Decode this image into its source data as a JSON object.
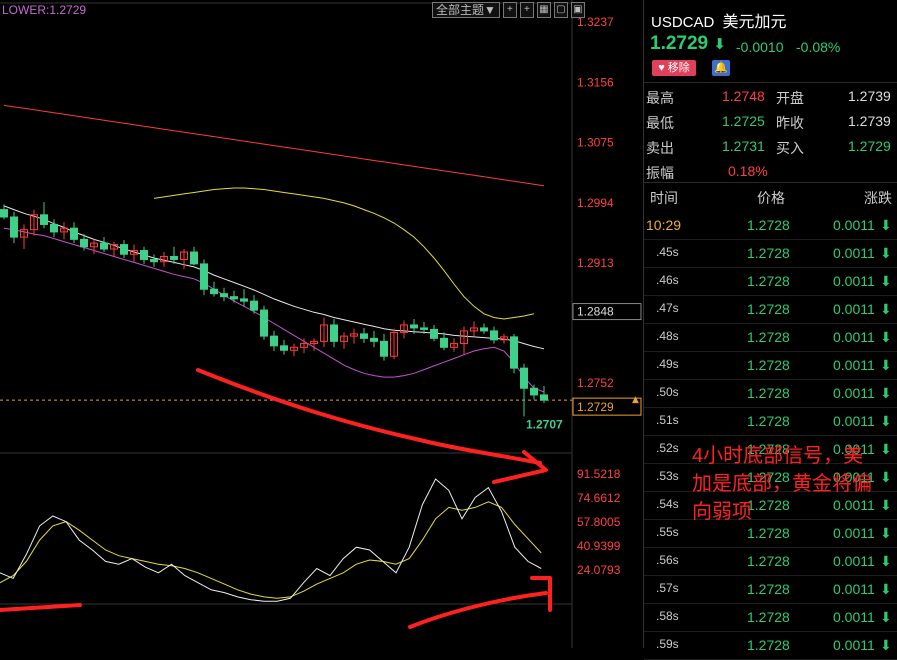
{
  "lower_label": "LOWER:1.2729",
  "toolbar": {
    "theme": "全部主题▼",
    "buttons": [
      "+",
      "+",
      "▦",
      "▢",
      "▣"
    ]
  },
  "header": {
    "symbol": "USDCAD",
    "name": "美元加元",
    "last": "1.2729",
    "arrow": "⬇",
    "change": "-0.0010",
    "change_pct": "-0.08%",
    "remove_label": "移除",
    "bell_icon": "bell-icon"
  },
  "quote": {
    "rows": [
      {
        "l1": "最高",
        "v1": "1.2748",
        "l2": "开盘",
        "v2": "1.2739"
      },
      {
        "l1": "最低",
        "v1": "1.2725",
        "l2": "昨收",
        "v2": "1.2739"
      },
      {
        "l1": "卖出",
        "v1": "1.2731",
        "l2": "买入",
        "v2": "1.2729"
      },
      {
        "l1": "振幅",
        "v1": "0.18%",
        "l2": "",
        "v2": ""
      }
    ]
  },
  "ticks": {
    "headers": {
      "time": "时间",
      "price": "价格",
      "change": "涨跌"
    },
    "rows": [
      {
        "time": "10:29",
        "price": "1.2728",
        "change": "0.0011"
      },
      {
        "time": ".45s",
        "price": "1.2728",
        "change": "0.0011"
      },
      {
        "time": ".46s",
        "price": "1.2728",
        "change": "0.0011"
      },
      {
        "time": ".47s",
        "price": "1.2728",
        "change": "0.0011"
      },
      {
        "time": ".48s",
        "price": "1.2728",
        "change": "0.0011"
      },
      {
        "time": ".49s",
        "price": "1.2728",
        "change": "0.0011"
      },
      {
        "time": ".50s",
        "price": "1.2728",
        "change": "0.0011"
      },
      {
        "time": ".51s",
        "price": "1.2728",
        "change": "0.0011"
      },
      {
        "time": ".52s",
        "price": "1.2728",
        "change": "0.0011"
      },
      {
        "time": ".53s",
        "price": "1.2728",
        "change": "0.0011"
      },
      {
        "time": ".54s",
        "price": "1.2728",
        "change": "0.0011"
      },
      {
        "time": ".55s",
        "price": "1.2728",
        "change": "0.0011"
      },
      {
        "time": ".56s",
        "price": "1.2728",
        "change": "0.0011"
      },
      {
        "time": ".57s",
        "price": "1.2728",
        "change": "0.0011"
      },
      {
        "time": ".58s",
        "price": "1.2728",
        "change": "0.0011"
      },
      {
        "time": ".59s",
        "price": "1.2728",
        "change": "0.0011"
      }
    ]
  },
  "colors": {
    "up": "#3fd08a",
    "down": "#ff3b3b",
    "ma_white": "#e8e8e8",
    "band_yellow": "#e6dc3c",
    "band_red": "#ff3b3b",
    "lower_band": "#c850d0",
    "annotation": "#ff2020"
  },
  "chart_data": {
    "type": "candlestick",
    "price_ticks": [
      1.3237,
      1.3156,
      1.3075,
      1.2994,
      1.2913,
      1.2848,
      1.2752,
      1.2729
    ],
    "current_price": 1.2729,
    "low_label": "1.2707",
    "ylim": [
      1.2705,
      1.3237
    ],
    "candles": [
      {
        "o": 1.2985,
        "h": 1.2992,
        "l": 1.2972,
        "c": 1.2975
      },
      {
        "o": 1.2975,
        "h": 1.2982,
        "l": 1.294,
        "c": 1.2948
      },
      {
        "o": 1.2948,
        "h": 1.2965,
        "l": 1.2932,
        "c": 1.2958
      },
      {
        "o": 1.2958,
        "h": 1.2985,
        "l": 1.295,
        "c": 1.2978
      },
      {
        "o": 1.2978,
        "h": 1.2995,
        "l": 1.296,
        "c": 1.2965
      },
      {
        "o": 1.2965,
        "h": 1.2972,
        "l": 1.2948,
        "c": 1.2955
      },
      {
        "o": 1.2955,
        "h": 1.2968,
        "l": 1.2945,
        "c": 1.296
      },
      {
        "o": 1.296,
        "h": 1.2968,
        "l": 1.294,
        "c": 1.2945
      },
      {
        "o": 1.2945,
        "h": 1.2952,
        "l": 1.293,
        "c": 1.2935
      },
      {
        "o": 1.2935,
        "h": 1.2945,
        "l": 1.2925,
        "c": 1.294
      },
      {
        "o": 1.294,
        "h": 1.2948,
        "l": 1.2928,
        "c": 1.2932
      },
      {
        "o": 1.2932,
        "h": 1.2942,
        "l": 1.2922,
        "c": 1.2938
      },
      {
        "o": 1.2938,
        "h": 1.2944,
        "l": 1.292,
        "c": 1.2925
      },
      {
        "o": 1.2925,
        "h": 1.2938,
        "l": 1.2915,
        "c": 1.293
      },
      {
        "o": 1.293,
        "h": 1.2935,
        "l": 1.2912,
        "c": 1.2918
      },
      {
        "o": 1.2918,
        "h": 1.2925,
        "l": 1.2908,
        "c": 1.2915
      },
      {
        "o": 1.2915,
        "h": 1.2928,
        "l": 1.2908,
        "c": 1.2922
      },
      {
        "o": 1.2922,
        "h": 1.2935,
        "l": 1.2912,
        "c": 1.2918
      },
      {
        "o": 1.2918,
        "h": 1.2932,
        "l": 1.2905,
        "c": 1.2928
      },
      {
        "o": 1.2928,
        "h": 1.2935,
        "l": 1.291,
        "c": 1.2912
      },
      {
        "o": 1.2912,
        "h": 1.2918,
        "l": 1.287,
        "c": 1.2878
      },
      {
        "o": 1.2878,
        "h": 1.2888,
        "l": 1.2868,
        "c": 1.2872
      },
      {
        "o": 1.2872,
        "h": 1.288,
        "l": 1.2862,
        "c": 1.2868
      },
      {
        "o": 1.2868,
        "h": 1.2876,
        "l": 1.286,
        "c": 1.2865
      },
      {
        "o": 1.2865,
        "h": 1.2878,
        "l": 1.2855,
        "c": 1.2862
      },
      {
        "o": 1.2862,
        "h": 1.287,
        "l": 1.2845,
        "c": 1.285
      },
      {
        "o": 1.285,
        "h": 1.2856,
        "l": 1.281,
        "c": 1.2815
      },
      {
        "o": 1.2815,
        "h": 1.2822,
        "l": 1.2795,
        "c": 1.2802
      },
      {
        "o": 1.2802,
        "h": 1.281,
        "l": 1.279,
        "c": 1.2796
      },
      {
        "o": 1.2796,
        "h": 1.2805,
        "l": 1.2788,
        "c": 1.28
      },
      {
        "o": 1.28,
        "h": 1.2812,
        "l": 1.2792,
        "c": 1.2805
      },
      {
        "o": 1.2805,
        "h": 1.2812,
        "l": 1.2795,
        "c": 1.2808
      },
      {
        "o": 1.2808,
        "h": 1.284,
        "l": 1.28,
        "c": 1.283
      },
      {
        "o": 1.283,
        "h": 1.2838,
        "l": 1.28,
        "c": 1.2808
      },
      {
        "o": 1.2808,
        "h": 1.282,
        "l": 1.2798,
        "c": 1.2815
      },
      {
        "o": 1.2815,
        "h": 1.2825,
        "l": 1.2805,
        "c": 1.2818
      },
      {
        "o": 1.2818,
        "h": 1.2826,
        "l": 1.2806,
        "c": 1.2812
      },
      {
        "o": 1.2812,
        "h": 1.2822,
        "l": 1.28,
        "c": 1.2808
      },
      {
        "o": 1.2808,
        "h": 1.2818,
        "l": 1.2782,
        "c": 1.2788
      },
      {
        "o": 1.2788,
        "h": 1.2825,
        "l": 1.2784,
        "c": 1.282
      },
      {
        "o": 1.282,
        "h": 1.2836,
        "l": 1.2812,
        "c": 1.283
      },
      {
        "o": 1.283,
        "h": 1.2838,
        "l": 1.2818,
        "c": 1.2826
      },
      {
        "o": 1.2826,
        "h": 1.2834,
        "l": 1.2818,
        "c": 1.2824
      },
      {
        "o": 1.2824,
        "h": 1.283,
        "l": 1.2808,
        "c": 1.2812
      },
      {
        "o": 1.2812,
        "h": 1.282,
        "l": 1.2796,
        "c": 1.28
      },
      {
        "o": 1.28,
        "h": 1.2812,
        "l": 1.2794,
        "c": 1.2805
      },
      {
        "o": 1.2805,
        "h": 1.2828,
        "l": 1.279,
        "c": 1.2822
      },
      {
        "o": 1.2822,
        "h": 1.2835,
        "l": 1.2815,
        "c": 1.2826
      },
      {
        "o": 1.2826,
        "h": 1.2832,
        "l": 1.2818,
        "c": 1.2822
      },
      {
        "o": 1.2822,
        "h": 1.2828,
        "l": 1.2805,
        "c": 1.281
      },
      {
        "o": 1.281,
        "h": 1.2818,
        "l": 1.2805,
        "c": 1.2814
      },
      {
        "o": 1.2814,
        "h": 1.2818,
        "l": 1.2765,
        "c": 1.2772
      },
      {
        "o": 1.2772,
        "h": 1.2778,
        "l": 1.2707,
        "c": 1.2745
      },
      {
        "o": 1.2745,
        "h": 1.275,
        "l": 1.273,
        "c": 1.2736
      },
      {
        "o": 1.2736,
        "h": 1.2748,
        "l": 1.2725,
        "c": 1.2729
      }
    ],
    "ma_white": [
      1.299,
      1.2985,
      1.298,
      1.2976,
      1.2972,
      1.2966,
      1.2961,
      1.2955,
      1.295,
      1.2945,
      1.2941,
      1.2937,
      1.2932,
      1.2928,
      1.2924,
      1.292,
      1.2917,
      1.2914,
      1.2911,
      1.2908,
      1.2903,
      1.2897,
      1.2892,
      1.2887,
      1.2882,
      1.2877,
      1.2871,
      1.2865,
      1.286,
      1.2855,
      1.2851,
      1.2847,
      1.2844,
      1.284,
      1.2837,
      1.2834,
      1.2831,
      1.2828,
      1.2825,
      1.2823,
      1.2822,
      1.2821,
      1.282,
      1.2819,
      1.2818,
      1.2816,
      1.2815,
      1.2814,
      1.2813,
      1.2812,
      1.2811,
      1.2809,
      1.2805,
      1.2801,
      1.2798
    ],
    "band_upper": [
      1.3,
      1.3002,
      1.3004,
      1.3006,
      1.3008,
      1.301,
      1.3012,
      1.3013,
      1.3014,
      1.3014,
      1.3013,
      1.3012,
      1.301,
      1.3008,
      1.3006,
      1.3004,
      1.3002,
      1.3,
      1.2997,
      1.2994,
      1.299,
      1.2985,
      1.298,
      1.2974,
      1.2967,
      1.2958,
      1.2948,
      1.2935,
      1.292,
      1.2903,
      1.2885,
      1.2868,
      1.2855,
      1.2845,
      1.284,
      1.2838,
      1.284,
      1.2842,
      1.2845
    ],
    "band_upper_start": 15,
    "band_red": [
      1.3125,
      1.3123,
      1.3121,
      1.3119,
      1.3117,
      1.3115,
      1.3113,
      1.3111,
      1.3109,
      1.3107,
      1.3105,
      1.3103,
      1.3101,
      1.3099,
      1.3097,
      1.3095,
      1.3093,
      1.3091,
      1.3089,
      1.3087,
      1.3085,
      1.3083,
      1.3081,
      1.3079,
      1.3077,
      1.3075,
      1.3073,
      1.3071,
      1.3069,
      1.3067,
      1.3065,
      1.3063,
      1.3061,
      1.3059,
      1.3057,
      1.3055,
      1.3053,
      1.3051,
      1.3049,
      1.3047,
      1.3045,
      1.3043,
      1.3041,
      1.3039,
      1.3037,
      1.3035,
      1.3033,
      1.3031,
      1.3029,
      1.3027,
      1.3025,
      1.3023,
      1.3021,
      1.3019,
      1.3017
    ],
    "band_lower": [
      1.296,
      1.2958,
      1.2955,
      1.2952,
      1.295,
      1.2946,
      1.2942,
      1.2938,
      1.2934,
      1.293,
      1.2926,
      1.2922,
      1.2918,
      1.2914,
      1.291,
      1.2906,
      1.2902,
      1.2898,
      1.2895,
      1.2892,
      1.2886,
      1.2878,
      1.287,
      1.2862,
      1.2855,
      1.2848,
      1.284,
      1.2832,
      1.2824,
      1.2816,
      1.2808,
      1.28,
      1.2792,
      1.2784,
      1.2776,
      1.277,
      1.2765,
      1.2762,
      1.276,
      1.276,
      1.2762,
      1.2765,
      1.277,
      1.2775,
      1.278,
      1.2785,
      1.279,
      1.2795,
      1.2798,
      1.28,
      1.2795,
      1.278,
      1.276,
      1.2745,
      1.274
    ],
    "oscillator": {
      "ticks": [
        91.5218,
        74.6612,
        57.8005,
        40.9399,
        24.0793
      ],
      "ylim": [
        0,
        100
      ],
      "fast": [
        22,
        18,
        35,
        55,
        62,
        58,
        45,
        38,
        30,
        28,
        32,
        26,
        22,
        28,
        20,
        15,
        10,
        8,
        5,
        3,
        2,
        2,
        4,
        15,
        25,
        20,
        32,
        40,
        38,
        30,
        22,
        40,
        70,
        88,
        80,
        60,
        75,
        82,
        65,
        40,
        30,
        25
      ],
      "slow": [
        15,
        20,
        30,
        45,
        55,
        58,
        52,
        45,
        38,
        34,
        32,
        30,
        28,
        27,
        25,
        22,
        18,
        14,
        10,
        7,
        5,
        4,
        5,
        9,
        14,
        18,
        22,
        28,
        31,
        30,
        28,
        32,
        45,
        60,
        68,
        66,
        68,
        72,
        68,
        56,
        46,
        36
      ]
    }
  },
  "annotation": {
    "text_lines": [
      "4小时底部信号，美",
      "加是底部，黄金将偏",
      "向弱项"
    ]
  }
}
